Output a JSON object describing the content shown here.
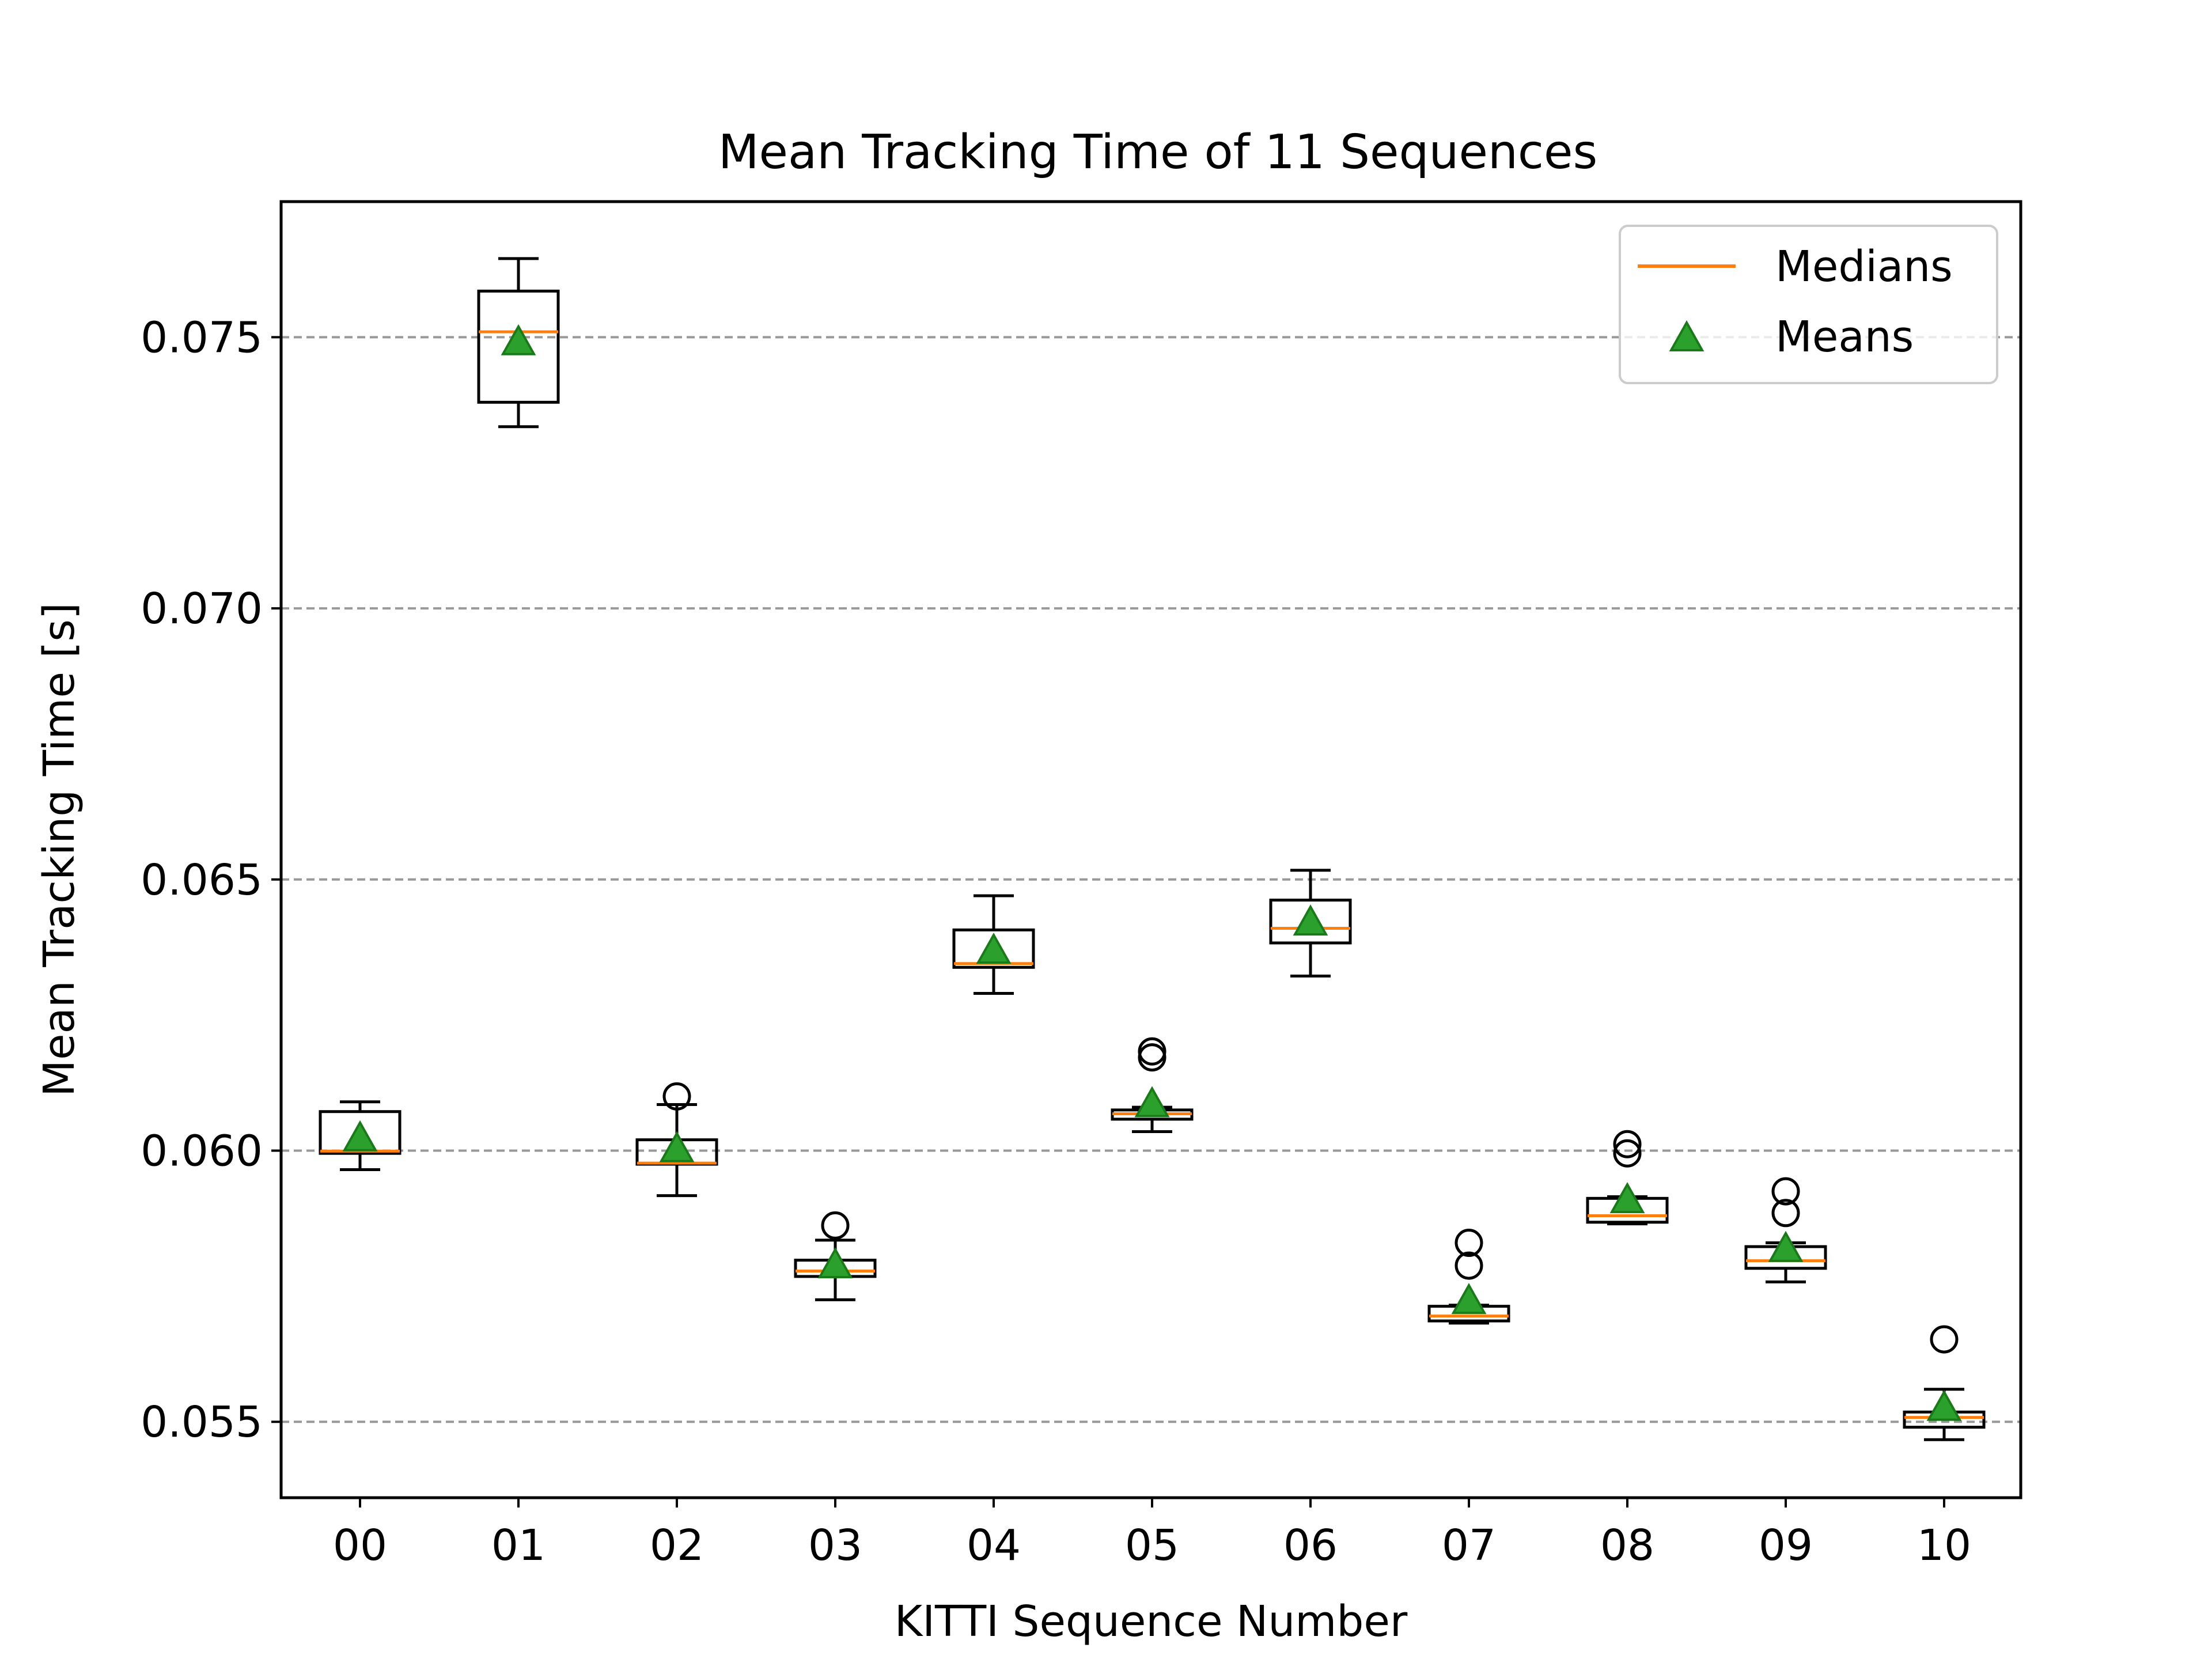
{
  "chart_data": {
    "type": "box",
    "title": "Mean Tracking Time of 11 Sequences",
    "xlabel": "KITTI Sequence Number",
    "ylabel": "Mean Tracking Time [s]",
    "ylim": [
      0.0536,
      0.0775
    ],
    "yticks": [
      0.055,
      0.06,
      0.065,
      0.07,
      0.075
    ],
    "ytick_labels": [
      "0.055",
      "0.060",
      "0.065",
      "0.070",
      "0.075"
    ],
    "grid": "horizontal dashed",
    "legend_position": "top-right",
    "legend": {
      "medians_label": "Medians",
      "means_label": "Means"
    },
    "colors": {
      "box": "#000000",
      "median": "#ff7f0e",
      "mean_fill": "#2ca02c",
      "mean_edge": "#1a7a1a",
      "grid": "#999999"
    },
    "categories": [
      "00",
      "01",
      "02",
      "03",
      "04",
      "05",
      "06",
      "07",
      "08",
      "09",
      "10"
    ],
    "boxes": [
      {
        "label": "00",
        "whisker_low": 0.05965,
        "q1": 0.05995,
        "median": 0.05999,
        "q3": 0.06072,
        "whisker_high": 0.0609,
        "mean": 0.06022,
        "outliers": []
      },
      {
        "label": "01",
        "whisker_low": 0.07335,
        "q1": 0.0738,
        "median": 0.0751,
        "q3": 0.07585,
        "whisker_high": 0.07645,
        "mean": 0.0749,
        "outliers": []
      },
      {
        "label": "02",
        "whisker_low": 0.05917,
        "q1": 0.05975,
        "median": 0.05977,
        "q3": 0.0602,
        "whisker_high": 0.06085,
        "mean": 0.06002,
        "outliers": [
          0.061
        ]
      },
      {
        "label": "03",
        "whisker_low": 0.05725,
        "q1": 0.05768,
        "median": 0.05778,
        "q3": 0.05798,
        "whisker_high": 0.05835,
        "mean": 0.05788,
        "outliers": [
          0.05862
        ]
      },
      {
        "label": "04",
        "whisker_low": 0.0629,
        "q1": 0.06338,
        "median": 0.06345,
        "q3": 0.06407,
        "whisker_high": 0.0647,
        "mean": 0.06368,
        "outliers": []
      },
      {
        "label": "05",
        "whisker_low": 0.06035,
        "q1": 0.06058,
        "median": 0.06068,
        "q3": 0.06075,
        "whisker_high": 0.0608,
        "mean": 0.06085,
        "outliers": [
          0.06172,
          0.06183
        ]
      },
      {
        "label": "06",
        "whisker_low": 0.06322,
        "q1": 0.06383,
        "median": 0.0641,
        "q3": 0.06462,
        "whisker_high": 0.06517,
        "mean": 0.0642,
        "outliers": []
      },
      {
        "label": "07",
        "whisker_low": 0.05682,
        "q1": 0.05686,
        "median": 0.05695,
        "q3": 0.05713,
        "whisker_high": 0.05715,
        "mean": 0.05722,
        "outliers": [
          0.05788,
          0.0583
        ]
      },
      {
        "label": "08",
        "whisker_low": 0.05865,
        "q1": 0.05868,
        "median": 0.0588,
        "q3": 0.05912,
        "whisker_high": 0.05915,
        "mean": 0.05908,
        "outliers": [
          0.05995,
          0.06012
        ]
      },
      {
        "label": "09",
        "whisker_low": 0.05758,
        "q1": 0.05783,
        "median": 0.05797,
        "q3": 0.05823,
        "whisker_high": 0.0583,
        "mean": 0.05818,
        "outliers": [
          0.05885,
          0.05925
        ]
      },
      {
        "label": "10",
        "whisker_low": 0.05467,
        "q1": 0.0549,
        "median": 0.05508,
        "q3": 0.05518,
        "whisker_high": 0.0556,
        "mean": 0.05525,
        "outliers": [
          0.05652
        ]
      }
    ]
  }
}
